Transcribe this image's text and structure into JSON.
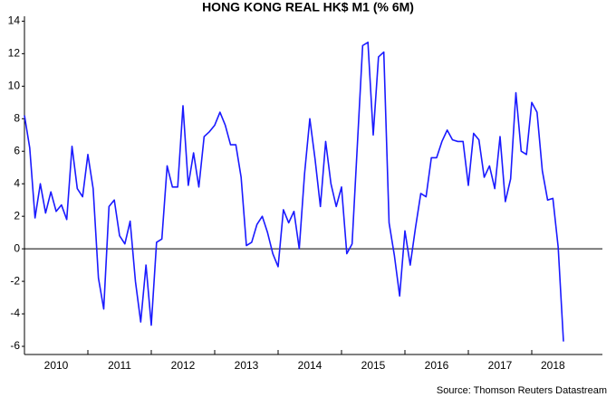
{
  "chart_data": {
    "type": "line",
    "title": "HONG KONG REAL HK$ M1 (% 6M)",
    "source": "Source: Thomson Reuters Datastream",
    "categories": [
      null,
      null,
      null,
      null,
      null,
      null,
      "2010",
      null,
      null,
      null,
      null,
      null,
      null,
      null,
      null,
      null,
      null,
      null,
      "2011",
      null,
      null,
      null,
      null,
      null,
      null,
      null,
      null,
      null,
      null,
      null,
      "2012",
      null,
      null,
      null,
      null,
      null,
      null,
      null,
      null,
      null,
      null,
      null,
      "2013",
      null,
      null,
      null,
      null,
      null,
      null,
      null,
      null,
      null,
      null,
      null,
      "2014",
      null,
      null,
      null,
      null,
      null,
      null,
      null,
      null,
      null,
      null,
      null,
      "2015",
      null,
      null,
      null,
      null,
      null,
      null,
      null,
      null,
      null,
      null,
      null,
      "2016",
      null,
      null,
      null,
      null,
      null,
      null,
      null,
      null,
      null,
      null,
      null,
      "2017",
      null,
      null,
      null,
      null,
      null,
      null,
      null,
      null,
      null,
      "2018",
      null,
      null
    ],
    "series": [
      {
        "color": "#1a1aff",
        "values": [
          8.2,
          6.2,
          1.9,
          4.0,
          2.2,
          3.5,
          2.3,
          2.7,
          1.8,
          6.3,
          3.7,
          3.2,
          5.8,
          3.7,
          -1.8,
          -3.7,
          2.6,
          3.0,
          0.8,
          0.3,
          1.7,
          -2.0,
          -4.5,
          -1.0,
          -4.7,
          0.4,
          0.6,
          5.1,
          3.8,
          3.8,
          8.8,
          3.9,
          5.9,
          3.8,
          6.9,
          7.2,
          7.6,
          8.4,
          7.6,
          6.4,
          6.4,
          4.4,
          0.2,
          0.4,
          1.5,
          2.0,
          1.0,
          -0.3,
          -1.1,
          2.4,
          1.6,
          2.3,
          0.0,
          4.6,
          8.0,
          5.5,
          2.6,
          6.6,
          4.0,
          2.6,
          3.8,
          -0.3,
          0.3,
          6.4,
          12.5,
          12.7,
          7.0,
          11.8,
          12.1,
          1.6,
          -0.4,
          -2.9,
          1.1,
          -1.0,
          1.3,
          3.4,
          3.2,
          5.6,
          5.6,
          6.6,
          7.3,
          6.7,
          6.6,
          6.6,
          3.9,
          7.1,
          6.7,
          4.4,
          5.1,
          3.7,
          6.9,
          2.9,
          4.3,
          9.6,
          6.0,
          5.8,
          9.0,
          8.4,
          4.8,
          3.0,
          3.1,
          0.1,
          -5.7
        ]
      }
    ],
    "ylim": [
      -6.5,
      14.3
    ],
    "yticks": [
      -6,
      -4,
      -2,
      0,
      2,
      4,
      6,
      8,
      10,
      12,
      14
    ],
    "hline": 0
  }
}
